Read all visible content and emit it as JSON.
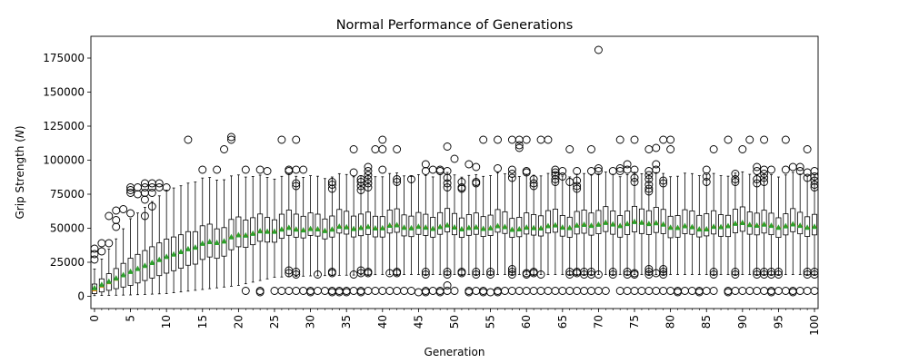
{
  "chart_data": {
    "type": "box",
    "title": "Normal Performance of Generations",
    "xlabel": "Generation",
    "ylabel_prefix": "Grip Strength (",
    "ylabel_unit": "N",
    "ylabel_suffix": ")",
    "ylim": [
      -9000,
      191000
    ],
    "yticks": [
      0,
      25000,
      50000,
      75000,
      100000,
      125000,
      150000,
      175000
    ],
    "ytick_labels": [
      "0",
      "25000",
      "50000",
      "75000",
      "100000",
      "125000",
      "150000",
      "175000"
    ],
    "xlim": [
      -0.5,
      100.5
    ],
    "xticks": [
      0,
      5,
      10,
      15,
      20,
      25,
      30,
      35,
      40,
      45,
      50,
      55,
      60,
      65,
      70,
      75,
      80,
      85,
      90,
      95,
      100
    ],
    "xtick_labels": [
      "0",
      "5",
      "10",
      "15",
      "20",
      "25",
      "30",
      "35",
      "40",
      "45",
      "50",
      "55",
      "60",
      "65",
      "70",
      "75",
      "80",
      "85",
      "90",
      "95",
      "100"
    ],
    "generations": {
      "start": 0,
      "end": 100
    },
    "box_color": "#000000",
    "median_color": "#ff7f0e",
    "mean_color": "#2ca02c",
    "box_anchors": [
      {
        "gen": 0,
        "min": 500,
        "q1": 2000,
        "median": 4000,
        "mean": 6000,
        "q3": 9000,
        "max": 20000
      },
      {
        "gen": 5,
        "min": 1000,
        "q1": 8000,
        "median": 17000,
        "mean": 18000,
        "q3": 28000,
        "max": 57000
      },
      {
        "gen": 10,
        "min": 2000,
        "q1": 17000,
        "median": 28000,
        "mean": 29000,
        "q3": 42000,
        "max": 78000
      },
      {
        "gen": 15,
        "min": 5000,
        "q1": 26000,
        "median": 37000,
        "mean": 38000,
        "q3": 50000,
        "max": 86000
      },
      {
        "gen": 20,
        "min": 8000,
        "q1": 35000,
        "median": 44000,
        "mean": 44000,
        "q3": 56000,
        "max": 88000
      },
      {
        "gen": 25,
        "min": 14000,
        "q1": 42000,
        "median": 49000,
        "mean": 49000,
        "q3": 60000,
        "max": 88000
      },
      {
        "gen": 30,
        "min": 15000,
        "q1": 44000,
        "median": 49000,
        "mean": 49000,
        "q3": 60000,
        "max": 88000
      },
      {
        "gen": 40,
        "min": 16000,
        "q1": 45000,
        "median": 51000,
        "mean": 51000,
        "q3": 61000,
        "max": 89000
      },
      {
        "gen": 60,
        "min": 16000,
        "q1": 45000,
        "median": 50000,
        "mean": 50000,
        "q3": 60000,
        "max": 89000
      },
      {
        "gen": 76,
        "min": 16000,
        "q1": 46000,
        "median": 54000,
        "mean": 54000,
        "q3": 64000,
        "max": 90000
      },
      {
        "gen": 85,
        "min": 16000,
        "q1": 44000,
        "median": 49000,
        "mean": 49000,
        "q3": 60000,
        "max": 89000
      },
      {
        "gen": 88,
        "min": 16000,
        "q1": 46000,
        "median": 53000,
        "mean": 53000,
        "q3": 63000,
        "max": 90000
      },
      {
        "gen": 100,
        "min": 16000,
        "q1": 45000,
        "median": 51000,
        "mean": 51000,
        "q3": 60000,
        "max": 89000
      }
    ],
    "outliers": [
      {
        "gen": 0,
        "values": [
          27000,
          31000,
          35000
        ]
      },
      {
        "gen": 1,
        "values": [
          33000,
          39000
        ]
      },
      {
        "gen": 2,
        "values": [
          39000,
          59000
        ]
      },
      {
        "gen": 3,
        "values": [
          51000,
          56000,
          63000
        ]
      },
      {
        "gen": 4,
        "values": [
          64000
        ]
      },
      {
        "gen": 5,
        "values": [
          61000,
          76000,
          78000,
          80000
        ]
      },
      {
        "gen": 6,
        "values": [
          75000,
          80000
        ]
      },
      {
        "gen": 7,
        "values": [
          59000,
          71000,
          76000,
          80000,
          83000
        ]
      },
      {
        "gen": 8,
        "values": [
          66000,
          76000,
          80000,
          83000
        ]
      },
      {
        "gen": 9,
        "values": [
          80000,
          83000
        ]
      },
      {
        "gen": 10,
        "values": [
          80000
        ]
      },
      {
        "gen": 13,
        "values": [
          115000
        ]
      },
      {
        "gen": 15,
        "values": [
          93000
        ]
      },
      {
        "gen": 17,
        "values": [
          93000
        ]
      },
      {
        "gen": 18,
        "values": [
          108000
        ]
      },
      {
        "gen": 19,
        "values": [
          115000,
          117000
        ]
      },
      {
        "gen": 21,
        "values": [
          4000,
          93000
        ]
      },
      {
        "gen": 23,
        "values": [
          3000,
          4000,
          93000
        ]
      },
      {
        "gen": 24,
        "values": [
          92000
        ]
      },
      {
        "gen": 25,
        "values": [
          4000
        ]
      },
      {
        "gen": 26,
        "values": [
          4000,
          115000
        ]
      },
      {
        "gen": 27,
        "values": [
          4000,
          17000,
          19000,
          92000,
          93000
        ]
      },
      {
        "gen": 28,
        "values": [
          4000,
          16000,
          18000,
          81000,
          83000,
          93000,
          115000
        ]
      },
      {
        "gen": 29,
        "values": [
          4000,
          93000
        ]
      },
      {
        "gen": 30,
        "values": [
          3000,
          4000
        ]
      },
      {
        "gen": 31,
        "values": [
          4000,
          16000
        ]
      },
      {
        "gen": 32,
        "values": [
          4000
        ]
      },
      {
        "gen": 33,
        "values": [
          3000,
          4000,
          17000,
          18000,
          79000,
          82000,
          84000
        ]
      },
      {
        "gen": 34,
        "values": [
          3000,
          4000
        ]
      },
      {
        "gen": 35,
        "values": [
          3000,
          4000
        ]
      },
      {
        "gen": 36,
        "values": [
          4000,
          16000,
          91000,
          108000
        ]
      },
      {
        "gen": 37,
        "values": [
          3000,
          4000,
          17000,
          19000,
          78000,
          81000,
          84000,
          86000
        ]
      },
      {
        "gen": 38,
        "values": [
          4000,
          17000,
          18000,
          80000,
          83000,
          86000,
          89000,
          92000,
          95000
        ]
      },
      {
        "gen": 39,
        "values": [
          4000,
          108000
        ]
      },
      {
        "gen": 40,
        "values": [
          4000,
          93000,
          108000,
          115000
        ]
      },
      {
        "gen": 41,
        "values": [
          4000,
          17000
        ]
      },
      {
        "gen": 42,
        "values": [
          4000,
          17000,
          18000,
          84000,
          86000,
          108000
        ]
      },
      {
        "gen": 43,
        "values": [
          4000
        ]
      },
      {
        "gen": 44,
        "values": [
          4000,
          86000
        ]
      },
      {
        "gen": 45,
        "values": [
          3000
        ]
      },
      {
        "gen": 46,
        "values": [
          3000,
          4000,
          16000,
          18000,
          92000,
          97000
        ]
      },
      {
        "gen": 47,
        "values": [
          4000,
          93000
        ]
      },
      {
        "gen": 48,
        "values": [
          3000,
          4000,
          92000,
          93000
        ]
      },
      {
        "gen": 49,
        "values": [
          4000,
          8000,
          16000,
          18000,
          80000,
          83000,
          87000,
          92000,
          110000
        ]
      },
      {
        "gen": 50,
        "values": [
          4000,
          101000
        ]
      },
      {
        "gen": 51,
        "values": [
          17000,
          18000,
          79000,
          80000,
          84000
        ]
      },
      {
        "gen": 52,
        "values": [
          3000,
          4000,
          97000
        ]
      },
      {
        "gen": 53,
        "values": [
          4000,
          16000,
          18000,
          83000,
          84000,
          95000
        ]
      },
      {
        "gen": 54,
        "values": [
          3000,
          4000,
          115000
        ]
      },
      {
        "gen": 55,
        "values": [
          3000,
          16000,
          18000
        ]
      },
      {
        "gen": 56,
        "values": [
          3000,
          4000,
          94000,
          115000
        ]
      },
      {
        "gen": 57,
        "values": [
          4000
        ]
      },
      {
        "gen": 58,
        "values": [
          4000,
          16000,
          18000,
          20000,
          87000,
          90000,
          93000,
          115000
        ]
      },
      {
        "gen": 59,
        "values": [
          4000,
          109000,
          111000,
          115000
        ]
      },
      {
        "gen": 60,
        "values": [
          4000,
          16000,
          17000,
          91000,
          92000,
          115000
        ]
      },
      {
        "gen": 61,
        "values": [
          4000,
          17000,
          18000,
          81000,
          83000,
          86000
        ]
      },
      {
        "gen": 62,
        "values": [
          4000,
          16000,
          115000
        ]
      },
      {
        "gen": 63,
        "values": [
          4000,
          115000
        ]
      },
      {
        "gen": 64,
        "values": [
          4000,
          84000,
          86000,
          89000,
          91000,
          93000
        ]
      },
      {
        "gen": 65,
        "values": [
          4000,
          88000,
          92000
        ]
      },
      {
        "gen": 66,
        "values": [
          4000,
          16000,
          18000,
          84000,
          108000
        ]
      },
      {
        "gen": 67,
        "values": [
          4000,
          17000,
          18000,
          79000,
          81000,
          85000,
          92000
        ]
      },
      {
        "gen": 68,
        "values": [
          4000,
          16000,
          18000
        ]
      },
      {
        "gen": 69,
        "values": [
          4000,
          16000,
          18000,
          92000,
          108000
        ]
      },
      {
        "gen": 70,
        "values": [
          4000,
          16000,
          92000,
          94000,
          181000
        ]
      },
      {
        "gen": 71,
        "values": [
          4000
        ]
      },
      {
        "gen": 72,
        "values": [
          16000,
          18000,
          92000
        ]
      },
      {
        "gen": 73,
        "values": [
          4000,
          92000,
          94000,
          115000
        ]
      },
      {
        "gen": 74,
        "values": [
          4000,
          16000,
          18000,
          93000,
          97000
        ]
      },
      {
        "gen": 75,
        "values": [
          4000,
          16000,
          17000,
          84000,
          87000,
          93000,
          115000
        ]
      },
      {
        "gen": 76,
        "values": [
          4000
        ]
      },
      {
        "gen": 77,
        "values": [
          4000,
          16000,
          18000,
          20000,
          77000,
          79000,
          82000,
          86000,
          89000,
          92000,
          108000
        ]
      },
      {
        "gen": 78,
        "values": [
          4000,
          17000,
          93000,
          97000,
          109000
        ]
      },
      {
        "gen": 79,
        "values": [
          4000,
          16000,
          18000,
          20000,
          83000,
          85000,
          115000
        ]
      },
      {
        "gen": 80,
        "values": [
          4000,
          108000,
          115000
        ]
      },
      {
        "gen": 81,
        "values": [
          3000,
          4000
        ]
      },
      {
        "gen": 82,
        "values": [
          4000
        ]
      },
      {
        "gen": 83,
        "values": [
          4000
        ]
      },
      {
        "gen": 84,
        "values": [
          3000,
          4000
        ]
      },
      {
        "gen": 85,
        "values": [
          4000,
          84000,
          88000,
          93000
        ]
      },
      {
        "gen": 86,
        "values": [
          4000,
          16000,
          18000,
          108000
        ]
      },
      {
        "gen": 88,
        "values": [
          3000,
          4000,
          115000
        ]
      },
      {
        "gen": 89,
        "values": [
          4000,
          16000,
          18000,
          84000,
          86000,
          90000
        ]
      },
      {
        "gen": 90,
        "values": [
          4000,
          108000
        ]
      },
      {
        "gen": 91,
        "values": [
          4000,
          115000
        ]
      },
      {
        "gen": 92,
        "values": [
          4000,
          16000,
          18000,
          83000,
          86000,
          92000,
          95000
        ]
      },
      {
        "gen": 93,
        "values": [
          4000,
          16000,
          18000,
          84000,
          87000,
          90000,
          93000,
          115000
        ]
      },
      {
        "gen": 94,
        "values": [
          3000,
          4000,
          16000,
          18000,
          93000
        ]
      },
      {
        "gen": 95,
        "values": [
          4000,
          16000,
          18000
        ]
      },
      {
        "gen": 96,
        "values": [
          4000,
          93000,
          115000
        ]
      },
      {
        "gen": 97,
        "values": [
          3000,
          4000,
          95000
        ]
      },
      {
        "gen": 98,
        "values": [
          4000,
          92000,
          95000
        ]
      },
      {
        "gen": 99,
        "values": [
          4000,
          16000,
          18000,
          87000,
          91000,
          108000
        ]
      },
      {
        "gen": 100,
        "values": [
          4000,
          16000,
          18000,
          80000,
          82000,
          85000,
          88000,
          92000
        ]
      }
    ]
  }
}
